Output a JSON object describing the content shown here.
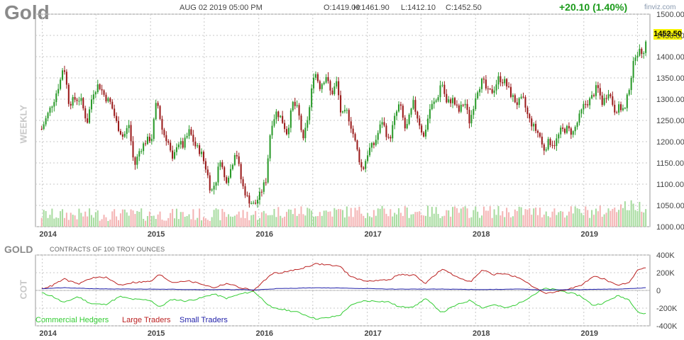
{
  "header": {
    "symbol": "Gold",
    "datetime": "AUG 02 2019 05:00 PM",
    "open": "O:1419.00",
    "high": "H:1461.90",
    "low": "L:1412.10",
    "close": "C:1452.50",
    "change": "+20.10 (1.40%)",
    "brand": "finviz.com",
    "last_price": "1452.50",
    "timeframe": "WEEKLY"
  },
  "cot_header": {
    "symbol": "GOLD",
    "subtitle": "CONTRACTS OF 100 TROY OUNCES",
    "side_label": "COT"
  },
  "colors": {
    "up": "#2a9a2a",
    "down": "#9a1a1a",
    "volume_up": "#a8dca0",
    "volume_down": "#f4b4b4",
    "commercial": "#33cc33",
    "large": "#bb2222",
    "small": "#2222aa",
    "grid": "#c8c8c8"
  },
  "chart_data": [
    {
      "type": "candlestick",
      "title": "Gold",
      "timeframe": "WEEKLY",
      "x_tick_labels": [
        "2014",
        "2015",
        "2016",
        "2017",
        "2018",
        "2019"
      ],
      "y_tick_labels": [
        "1500.00",
        "1450.00",
        "1400.00",
        "1350.00",
        "1300.00",
        "1250.00",
        "1200.00",
        "1150.00",
        "1100.00",
        "1050.00",
        "1000.00"
      ],
      "ylim": [
        1000,
        1500
      ],
      "close_path": [
        [
          "2013-12-30",
          1230
        ],
        [
          "2014-01-20",
          1265
        ],
        [
          "2014-02-10",
          1300
        ],
        [
          "2014-03-03",
          1345
        ],
        [
          "2014-03-14",
          1385
        ],
        [
          "2014-04-01",
          1290
        ],
        [
          "2014-04-20",
          1300
        ],
        [
          "2014-05-10",
          1300
        ],
        [
          "2014-06-01",
          1245
        ],
        [
          "2014-06-20",
          1315
        ],
        [
          "2014-07-10",
          1335
        ],
        [
          "2014-08-01",
          1305
        ],
        [
          "2014-08-20",
          1290
        ],
        [
          "2014-09-10",
          1240
        ],
        [
          "2014-10-01",
          1210
        ],
        [
          "2014-10-20",
          1240
        ],
        [
          "2014-11-07",
          1140
        ],
        [
          "2014-11-25",
          1180
        ],
        [
          "2014-12-15",
          1200
        ],
        [
          "2015-01-05",
          1210
        ],
        [
          "2015-01-22",
          1300
        ],
        [
          "2015-02-10",
          1225
        ],
        [
          "2015-03-01",
          1200
        ],
        [
          "2015-03-17",
          1150
        ],
        [
          "2015-04-01",
          1200
        ],
        [
          "2015-04-20",
          1190
        ],
        [
          "2015-05-12",
          1225
        ],
        [
          "2015-06-01",
          1190
        ],
        [
          "2015-06-20",
          1175
        ],
        [
          "2015-07-10",
          1130
        ],
        [
          "2015-07-24",
          1080
        ],
        [
          "2015-08-10",
          1110
        ],
        [
          "2015-08-24",
          1160
        ],
        [
          "2015-09-10",
          1105
        ],
        [
          "2015-10-01",
          1140
        ],
        [
          "2015-10-15",
          1185
        ],
        [
          "2015-11-05",
          1100
        ],
        [
          "2015-11-25",
          1065
        ],
        [
          "2015-12-17",
          1050
        ],
        [
          "2016-01-05",
          1075
        ],
        [
          "2016-01-25",
          1110
        ],
        [
          "2016-02-11",
          1240
        ],
        [
          "2016-03-01",
          1270
        ],
        [
          "2016-03-17",
          1255
        ],
        [
          "2016-04-05",
          1220
        ],
        [
          "2016-04-25",
          1290
        ],
        [
          "2016-05-12",
          1275
        ],
        [
          "2016-05-30",
          1200
        ],
        [
          "2016-06-20",
          1280
        ],
        [
          "2016-07-06",
          1370
        ],
        [
          "2016-07-25",
          1330
        ],
        [
          "2016-08-15",
          1355
        ],
        [
          "2016-09-01",
          1310
        ],
        [
          "2016-09-20",
          1340
        ],
        [
          "2016-10-05",
          1260
        ],
        [
          "2016-10-25",
          1270
        ],
        [
          "2016-11-10",
          1230
        ],
        [
          "2016-12-01",
          1170
        ],
        [
          "2016-12-15",
          1130
        ],
        [
          "2017-01-05",
          1180
        ],
        [
          "2017-01-25",
          1195
        ],
        [
          "2017-02-20",
          1250
        ],
        [
          "2017-03-15",
          1200
        ],
        [
          "2017-04-05",
          1260
        ],
        [
          "2017-04-20",
          1290
        ],
        [
          "2017-05-10",
          1225
        ],
        [
          "2017-06-05",
          1290
        ],
        [
          "2017-06-25",
          1245
        ],
        [
          "2017-07-10",
          1210
        ],
        [
          "2017-08-01",
          1280
        ],
        [
          "2017-08-25",
          1300
        ],
        [
          "2017-09-08",
          1345
        ],
        [
          "2017-09-25",
          1290
        ],
        [
          "2017-10-15",
          1300
        ],
        [
          "2017-11-05",
          1270
        ],
        [
          "2017-11-25",
          1295
        ],
        [
          "2017-12-12",
          1245
        ],
        [
          "2018-01-05",
          1320
        ],
        [
          "2018-01-25",
          1345
        ],
        [
          "2018-02-10",
          1315
        ],
        [
          "2018-03-01",
          1320
        ],
        [
          "2018-03-20",
          1350
        ],
        [
          "2018-04-10",
          1340
        ],
        [
          "2018-05-01",
          1310
        ],
        [
          "2018-05-20",
          1290
        ],
        [
          "2018-06-10",
          1300
        ],
        [
          "2018-06-28",
          1255
        ],
        [
          "2018-07-20",
          1230
        ],
        [
          "2018-08-05",
          1215
        ],
        [
          "2018-08-17",
          1180
        ],
        [
          "2018-09-05",
          1200
        ],
        [
          "2018-09-25",
          1195
        ],
        [
          "2018-10-15",
          1225
        ],
        [
          "2018-11-05",
          1230
        ],
        [
          "2018-11-25",
          1220
        ],
        [
          "2018-12-10",
          1245
        ],
        [
          "2019-01-01",
          1285
        ],
        [
          "2019-01-25",
          1300
        ],
        [
          "2019-02-15",
          1330
        ],
        [
          "2019-03-05",
          1290
        ],
        [
          "2019-03-25",
          1320
        ],
        [
          "2019-04-15",
          1275
        ],
        [
          "2019-05-01",
          1280
        ],
        [
          "2019-05-20",
          1275
        ],
        [
          "2019-06-07",
          1345
        ],
        [
          "2019-06-25",
          1410
        ],
        [
          "2019-07-12",
          1410
        ],
        [
          "2019-07-26",
          1420
        ],
        [
          "2019-08-02",
          1452.5
        ]
      ],
      "volume": "bars at the bottom of the price panel, green = up week, pink = down week"
    },
    {
      "type": "line",
      "title": "GOLD",
      "subtitle": "CONTRACTS OF 100 TROY OUNCES",
      "x_tick_labels": [
        "2014",
        "2015",
        "2016",
        "2017",
        "2018",
        "2019"
      ],
      "y_tick_labels": [
        "400K",
        "200K",
        "0",
        "-200K",
        "-400K"
      ],
      "ylim": [
        -400000,
        400000
      ],
      "legend_position": "bottom-left",
      "series": [
        {
          "name": "Commercial Hedgers",
          "values": [
            [
              "2013-12-30",
              -30000
            ],
            [
              "2014-02-01",
              -60000
            ],
            [
              "2014-03-15",
              -140000
            ],
            [
              "2014-05-01",
              -70000
            ],
            [
              "2014-06-15",
              -150000
            ],
            [
              "2014-08-01",
              -160000
            ],
            [
              "2014-09-20",
              -70000
            ],
            [
              "2014-11-01",
              -100000
            ],
            [
              "2015-01-01",
              -110000
            ],
            [
              "2015-01-31",
              -190000
            ],
            [
              "2015-03-15",
              -100000
            ],
            [
              "2015-05-01",
              -120000
            ],
            [
              "2015-06-15",
              -90000
            ],
            [
              "2015-08-01",
              -40000
            ],
            [
              "2015-09-15",
              -90000
            ],
            [
              "2015-11-01",
              -40000
            ],
            [
              "2015-12-15",
              -10000
            ],
            [
              "2016-02-15",
              -200000
            ],
            [
              "2016-04-01",
              -220000
            ],
            [
              "2016-05-15",
              -250000
            ],
            [
              "2016-07-10",
              -320000
            ],
            [
              "2016-08-20",
              -310000
            ],
            [
              "2016-10-01",
              -280000
            ],
            [
              "2016-11-01",
              -180000
            ],
            [
              "2016-12-15",
              -120000
            ],
            [
              "2017-02-01",
              -120000
            ],
            [
              "2017-03-15",
              -130000
            ],
            [
              "2017-04-20",
              -190000
            ],
            [
              "2017-06-10",
              -180000
            ],
            [
              "2017-07-15",
              -90000
            ],
            [
              "2017-09-10",
              -250000
            ],
            [
              "2017-10-25",
              -170000
            ],
            [
              "2017-12-15",
              -110000
            ],
            [
              "2018-01-25",
              -200000
            ],
            [
              "2018-03-01",
              -160000
            ],
            [
              "2018-04-15",
              -200000
            ],
            [
              "2018-05-25",
              -150000
            ],
            [
              "2018-07-10",
              -60000
            ],
            [
              "2018-08-20",
              20000
            ],
            [
              "2018-09-25",
              10000
            ],
            [
              "2018-11-05",
              -20000
            ],
            [
              "2018-12-20",
              -60000
            ],
            [
              "2019-02-01",
              -170000
            ],
            [
              "2019-03-10",
              -140000
            ],
            [
              "2019-04-25",
              -60000
            ],
            [
              "2019-06-01",
              -100000
            ],
            [
              "2019-07-05",
              -250000
            ],
            [
              "2019-08-02",
              -270000
            ]
          ]
        },
        {
          "name": "Large Traders",
          "values": [
            [
              "2013-12-30",
              20000
            ],
            [
              "2014-02-01",
              50000
            ],
            [
              "2014-03-15",
              130000
            ],
            [
              "2014-05-01",
              70000
            ],
            [
              "2014-06-15",
              140000
            ],
            [
              "2014-08-01",
              150000
            ],
            [
              "2014-09-20",
              60000
            ],
            [
              "2014-11-01",
              90000
            ],
            [
              "2015-01-01",
              100000
            ],
            [
              "2015-01-31",
              180000
            ],
            [
              "2015-03-15",
              90000
            ],
            [
              "2015-05-01",
              110000
            ],
            [
              "2015-06-15",
              80000
            ],
            [
              "2015-08-01",
              30000
            ],
            [
              "2015-09-15",
              80000
            ],
            [
              "2015-11-01",
              30000
            ],
            [
              "2015-12-15",
              0
            ],
            [
              "2016-02-15",
              190000
            ],
            [
              "2016-04-01",
              210000
            ],
            [
              "2016-05-15",
              240000
            ],
            [
              "2016-07-10",
              300000
            ],
            [
              "2016-08-20",
              290000
            ],
            [
              "2016-10-01",
              270000
            ],
            [
              "2016-11-01",
              170000
            ],
            [
              "2016-12-15",
              110000
            ],
            [
              "2017-02-01",
              110000
            ],
            [
              "2017-03-15",
              120000
            ],
            [
              "2017-04-20",
              180000
            ],
            [
              "2017-06-10",
              170000
            ],
            [
              "2017-07-15",
              80000
            ],
            [
              "2017-09-10",
              240000
            ],
            [
              "2017-10-25",
              160000
            ],
            [
              "2017-12-15",
              100000
            ],
            [
              "2018-01-25",
              230000
            ],
            [
              "2018-03-01",
              180000
            ],
            [
              "2018-04-15",
              190000
            ],
            [
              "2018-05-25",
              140000
            ],
            [
              "2018-07-10",
              50000
            ],
            [
              "2018-08-20",
              -30000
            ],
            [
              "2018-09-25",
              -20000
            ],
            [
              "2018-11-05",
              10000
            ],
            [
              "2018-12-20",
              50000
            ],
            [
              "2019-02-01",
              160000
            ],
            [
              "2019-03-10",
              130000
            ],
            [
              "2019-04-25",
              50000
            ],
            [
              "2019-06-01",
              90000
            ],
            [
              "2019-07-05",
              240000
            ],
            [
              "2019-08-02",
              260000
            ]
          ]
        },
        {
          "name": "Small Traders",
          "values": [
            [
              "2013-12-30",
              20000
            ],
            [
              "2014-03-15",
              30000
            ],
            [
              "2014-06-15",
              20000
            ],
            [
              "2014-09-20",
              15000
            ],
            [
              "2015-01-31",
              15000
            ],
            [
              "2015-06-15",
              10000
            ],
            [
              "2015-11-01",
              10000
            ],
            [
              "2015-12-15",
              5000
            ],
            [
              "2016-03-01",
              20000
            ],
            [
              "2016-07-10",
              30000
            ],
            [
              "2016-11-01",
              25000
            ],
            [
              "2017-03-15",
              15000
            ],
            [
              "2017-09-10",
              15000
            ],
            [
              "2018-01-25",
              10000
            ],
            [
              "2018-06-01",
              15000
            ],
            [
              "2018-08-20",
              5000
            ],
            [
              "2018-12-20",
              10000
            ],
            [
              "2019-04-25",
              15000
            ],
            [
              "2019-08-02",
              30000
            ]
          ]
        }
      ]
    }
  ]
}
